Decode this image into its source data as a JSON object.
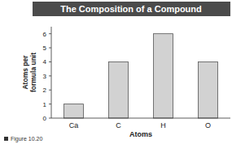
{
  "chart_data": {
    "type": "bar",
    "title": "The Composition of a Compound",
    "x_label": "Atoms",
    "y_label": "Atoms per formula unit",
    "caption": "Figure 10.20",
    "categories": [
      "Ca",
      "C",
      "H",
      "O"
    ],
    "values": [
      1,
      4,
      6,
      4
    ],
    "color": "#d2d2d2",
    "ylim": [
      0,
      6.5
    ],
    "yticks": [
      0,
      1,
      2,
      3,
      4,
      5,
      6
    ],
    "grid": false
  }
}
